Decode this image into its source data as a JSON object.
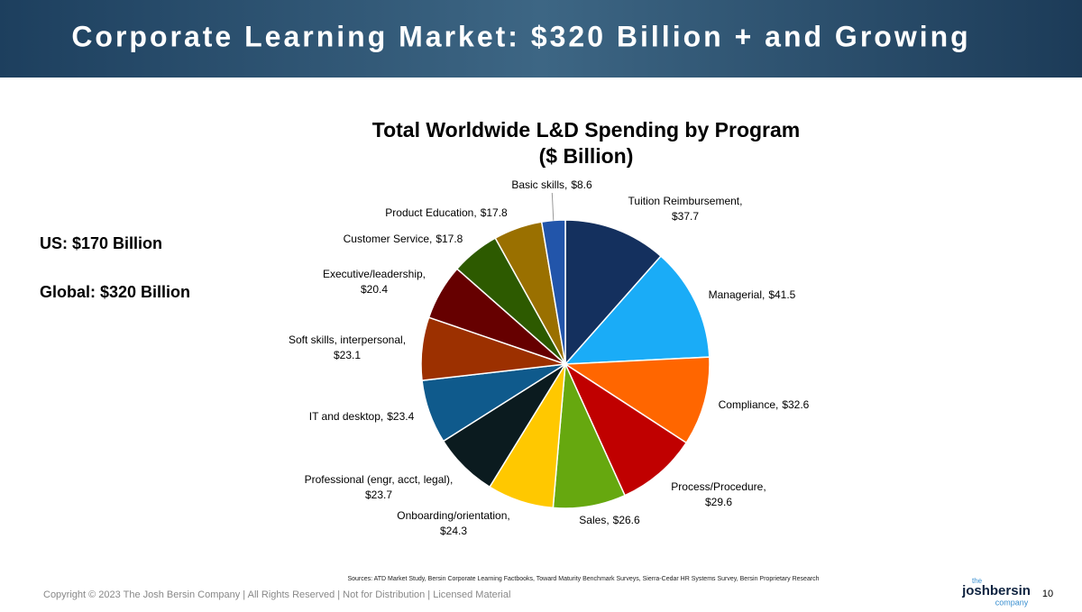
{
  "header": {
    "title": "Corporate Learning Market:  $320 Billion + and Growing"
  },
  "notes": [
    "US:  $170 Billion",
    "Global:  $320 Billion"
  ],
  "chart_data": {
    "type": "pie",
    "title": "Total Worldwide L&D Spending by Program",
    "subtitle": "($ Billion)",
    "categories": [
      "Tuition Reimbursement,",
      "Managerial,",
      "Compliance,",
      "Process/Procedure,",
      "Sales,",
      "Onboarding/orientation,",
      "Professional (engr, acct, legal),",
      "IT and desktop,",
      "Soft skills, interpersonal,",
      "Executive/leadership,",
      "Customer Service,",
      "Product Education,",
      "Basic skills,"
    ],
    "values": [
      37.7,
      41.5,
      32.6,
      29.6,
      26.6,
      24.3,
      23.7,
      23.4,
      23.1,
      20.4,
      17.8,
      17.8,
      8.6
    ],
    "value_labels": [
      "$37.7",
      "$41.5",
      "$32.6",
      "$29.6",
      "$26.6",
      "$24.3",
      "$23.7",
      "$23.4",
      "$23.1",
      "$20.4",
      "$17.8",
      "$17.8",
      "$8.6"
    ],
    "colors": [
      "#14305e",
      "#1aacf7",
      "#ff6600",
      "#c00000",
      "#66a80f",
      "#ffc800",
      "#0b1b1f",
      "#0f5a8c",
      "#9c3000",
      "#660000",
      "#2d5a00",
      "#9a7000",
      "#2255aa"
    ]
  },
  "sources": "Sources:  ATD Market Study, Bersin Corporate Learning Factbooks, Toward Maturity Benchmark Surveys, Sierra-Cedar HR Systems Survey, Bersin Proprietary Research",
  "footer": {
    "copyright": "Copyright © 2023 The Josh Bersin Company | All Rights Reserved | Not for Distribution | Licensed Material",
    "logo_top": "the",
    "logo_main": "joshbersin",
    "logo_bottom": "company",
    "page": "10"
  }
}
